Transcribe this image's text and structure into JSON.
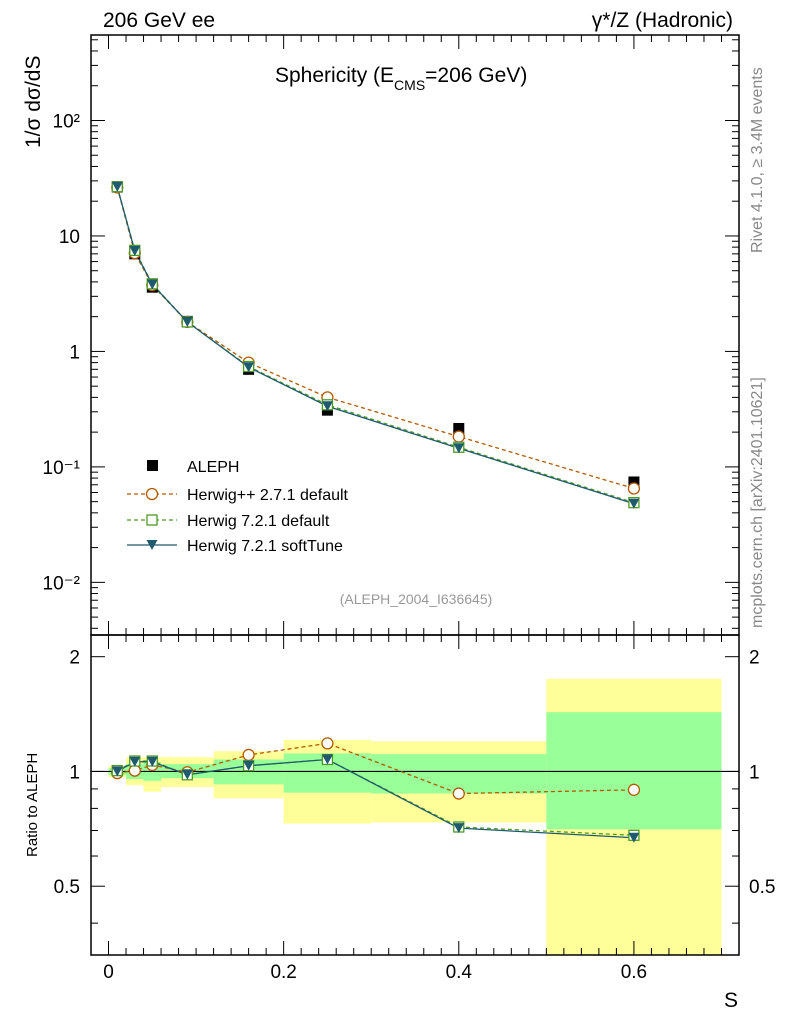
{
  "header": {
    "left": "206 GeV ee",
    "right": "γ*/Z (Hadronic)"
  },
  "side_labels": {
    "rivet": "Rivet 4.1.0, ≥ 3.4M events",
    "mcplots": "mcplots.cern.ch [arXiv:2401.10621]"
  },
  "chart_data": {
    "type": "line",
    "title_main": "Sphericity (E",
    "title_sub": "CMS",
    "title_end": "=206 GeV)",
    "ylabel": "1/σ  dσ/dS",
    "ratio_ylabel": "Ratio to ALEPH",
    "xlabel": "S",
    "analysis_id": "(ALEPH_2004_I636645)",
    "xlim": [
      -0.02,
      0.72
    ],
    "ylim_log": [
      0.0035,
      550
    ],
    "ratio_ylim": [
      0.33,
      2.28
    ],
    "x": [
      0.01,
      0.03,
      0.05,
      0.09,
      0.16,
      0.25,
      0.4,
      0.6
    ],
    "y_tick_labels": [
      "10⁻²",
      "10⁻¹",
      "1",
      "10",
      "10²"
    ],
    "x_tick_labels": [
      "0",
      "0.2",
      "0.4",
      "0.6"
    ],
    "ratio_tick_labels": [
      "0.5",
      "1",
      "2"
    ],
    "series": [
      {
        "name": "ALEPH",
        "style": "data",
        "color": "#000000",
        "values": [
          26.5,
          7.0,
          3.6,
          1.82,
          0.7,
          0.31,
          0.215,
          0.074
        ]
      },
      {
        "name": "Herwig++ 2.7.1 default",
        "style": "circle",
        "color": "#b35a00",
        "values": [
          26.3,
          7.1,
          3.75,
          1.8,
          0.8,
          0.4,
          0.183,
          0.065
        ],
        "ratio": [
          0.99,
          1.005,
          1.04,
          0.995,
          1.105,
          1.185,
          0.875,
          0.895
        ]
      },
      {
        "name": "Herwig 7.2.1 default",
        "style": "square",
        "color": "#4d9b27",
        "values": [
          26.7,
          7.5,
          3.85,
          1.8,
          0.74,
          0.345,
          0.148,
          0.049
        ],
        "ratio": [
          1.005,
          1.065,
          1.065,
          0.98,
          1.035,
          1.075,
          0.715,
          0.68
        ]
      },
      {
        "name": "Herwig 7.2.1 softTune",
        "style": "triangle",
        "color": "#1f5a6e",
        "values": [
          26.6,
          7.4,
          3.8,
          1.8,
          0.73,
          0.335,
          0.145,
          0.048
        ],
        "ratio": [
          1.0,
          1.06,
          1.06,
          0.98,
          1.035,
          1.075,
          0.71,
          0.67
        ]
      }
    ],
    "bands": [
      {
        "xlo": 0.0,
        "xhi": 0.02,
        "yellow": [
          0.965,
          1.035
        ],
        "green": [
          0.98,
          1.02
        ]
      },
      {
        "xlo": 0.02,
        "xhi": 0.04,
        "yellow": [
          0.92,
          1.09
        ],
        "green": [
          0.955,
          1.045
        ]
      },
      {
        "xlo": 0.04,
        "xhi": 0.06,
        "yellow": [
          0.885,
          1.09
        ],
        "green": [
          0.945,
          1.06
        ]
      },
      {
        "xlo": 0.06,
        "xhi": 0.12,
        "yellow": [
          0.91,
          1.09
        ],
        "green": [
          0.96,
          1.045
        ]
      },
      {
        "xlo": 0.12,
        "xhi": 0.2,
        "yellow": [
          0.85,
          1.13
        ],
        "green": [
          0.925,
          1.075
        ]
      },
      {
        "xlo": 0.2,
        "xhi": 0.3,
        "yellow": [
          0.73,
          1.21
        ],
        "green": [
          0.88,
          1.115
        ]
      },
      {
        "xlo": 0.3,
        "xhi": 0.5,
        "yellow": [
          0.735,
          1.2
        ],
        "green": [
          0.875,
          1.11
        ]
      },
      {
        "xlo": 0.5,
        "xhi": 0.7,
        "yellow": [
          0.33,
          1.75
        ],
        "green": [
          0.705,
          1.43
        ]
      }
    ]
  }
}
